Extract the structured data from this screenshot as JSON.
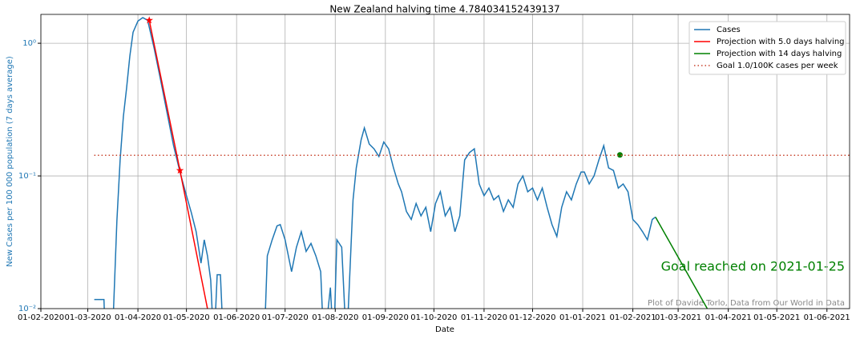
{
  "chart_data": {
    "type": "line",
    "title": "New Zealand halving time 4.784034152439137",
    "xlabel": "Date",
    "ylabel": "New Cases per 100 000 population (7 days average)",
    "annotation": "Goal reached on 2021-01-25",
    "footnote": "Plot of Davide Torlo, Data from Our World in Data",
    "log_y": true,
    "grid": true,
    "legend": "upper right",
    "xlim": [
      "2020-02-01",
      "2021-06-15"
    ],
    "ylim": [
      0.01,
      1.65
    ],
    "xticks": [
      {
        "value": "2020-02-01",
        "label": "01-02-2020"
      },
      {
        "value": "2020-03-01",
        "label": "01-03-2020"
      },
      {
        "value": "2020-04-01",
        "label": "01-04-2020"
      },
      {
        "value": "2020-05-01",
        "label": "01-05-2020"
      },
      {
        "value": "2020-06-01",
        "label": "01-06-2020"
      },
      {
        "value": "2020-07-01",
        "label": "01-07-2020"
      },
      {
        "value": "2020-08-01",
        "label": "01-08-2020"
      },
      {
        "value": "2020-09-01",
        "label": "01-09-2020"
      },
      {
        "value": "2020-10-01",
        "label": "01-10-2020"
      },
      {
        "value": "2020-11-01",
        "label": "01-11-2020"
      },
      {
        "value": "2020-12-01",
        "label": "01-12-2020"
      },
      {
        "value": "2021-01-01",
        "label": "01-01-2021"
      },
      {
        "value": "2021-02-01",
        "label": "01-02-2021"
      },
      {
        "value": "2021-03-01",
        "label": "01-03-2021"
      },
      {
        "value": "2021-04-01",
        "label": "01-04-2021"
      },
      {
        "value": "2021-05-01",
        "label": "01-05-2021"
      },
      {
        "value": "2021-06-01",
        "label": "01-06-2021"
      }
    ],
    "yticks": [
      {
        "value": 0.01,
        "label": "10⁻²"
      },
      {
        "value": 0.1,
        "label": "10⁻¹"
      },
      {
        "value": 1,
        "label": "10⁰"
      }
    ],
    "series": [
      {
        "name": "Cases",
        "color": "#1f77b4",
        "linestyle": "solid",
        "x": [
          "2020-03-05",
          "2020-03-11",
          "2020-03-12",
          "2020-03-16",
          "2020-03-19",
          "2020-03-21",
          "2020-03-23",
          "2020-03-25",
          "2020-03-27",
          "2020-03-29",
          "2020-04-01",
          "2020-04-04",
          "2020-04-07",
          "2020-04-11",
          "2020-04-15",
          "2020-04-19",
          "2020-04-23",
          "2020-04-27",
          "2020-05-01",
          "2020-05-04",
          "2020-05-07",
          "2020-05-10",
          "2020-05-12",
          "2020-05-14",
          "2020-05-16",
          "2020-05-18",
          "2020-05-20",
          "2020-05-22",
          "2020-05-24",
          "2020-06-18",
          "2020-06-20",
          "2020-06-23",
          "2020-06-26",
          "2020-06-28",
          "2020-07-01",
          "2020-07-05",
          "2020-07-08",
          "2020-07-11",
          "2020-07-14",
          "2020-07-17",
          "2020-07-20",
          "2020-07-23",
          "2020-07-25",
          "2020-07-29",
          "2020-07-31",
          "2020-08-02",
          "2020-08-05",
          "2020-08-08",
          "2020-08-12",
          "2020-08-14",
          "2020-08-17",
          "2020-08-19",
          "2020-08-22",
          "2020-08-25",
          "2020-08-28",
          "2020-08-31",
          "2020-09-03",
          "2020-09-06",
          "2020-09-09",
          "2020-09-11",
          "2020-09-14",
          "2020-09-17",
          "2020-09-20",
          "2020-09-23",
          "2020-09-26",
          "2020-09-29",
          "2020-10-02",
          "2020-10-05",
          "2020-10-08",
          "2020-10-11",
          "2020-10-14",
          "2020-10-17",
          "2020-10-20",
          "2020-10-23",
          "2020-10-26",
          "2020-10-29",
          "2020-11-01",
          "2020-11-04",
          "2020-11-07",
          "2020-11-10",
          "2020-11-13",
          "2020-11-16",
          "2020-11-19",
          "2020-11-22",
          "2020-11-25",
          "2020-11-28",
          "2020-12-01",
          "2020-12-04",
          "2020-12-07",
          "2020-12-10",
          "2020-12-13",
          "2020-12-16",
          "2020-12-19",
          "2020-12-22",
          "2020-12-25",
          "2020-12-28",
          "2020-12-31",
          "2021-01-02",
          "2021-01-05",
          "2021-01-08",
          "2021-01-11",
          "2021-01-14",
          "2021-01-17",
          "2021-01-20",
          "2021-01-23",
          "2021-01-26",
          "2021-01-29",
          "2021-02-01",
          "2021-02-04",
          "2021-02-07",
          "2021-02-10",
          "2021-02-13",
          "2021-02-15"
        ],
        "values": [
          0.0117,
          0.0117,
          0.005,
          0.005,
          0.046,
          0.132,
          0.28,
          0.46,
          0.8,
          1.21,
          1.47,
          1.56,
          1.49,
          0.92,
          0.53,
          0.3,
          0.17,
          0.107,
          0.071,
          0.053,
          0.038,
          0.022,
          0.033,
          0.025,
          0.0164,
          0.005,
          0.018,
          0.018,
          0.005,
          0.005,
          0.025,
          0.033,
          0.042,
          0.043,
          0.033,
          0.019,
          0.029,
          0.038,
          0.027,
          0.031,
          0.025,
          0.019,
          0.005,
          0.0144,
          0.005,
          0.033,
          0.029,
          0.005,
          0.066,
          0.115,
          0.187,
          0.23,
          0.174,
          0.16,
          0.14,
          0.18,
          0.16,
          0.115,
          0.087,
          0.076,
          0.054,
          0.047,
          0.062,
          0.05,
          0.058,
          0.038,
          0.062,
          0.076,
          0.05,
          0.058,
          0.038,
          0.05,
          0.132,
          0.15,
          0.16,
          0.087,
          0.071,
          0.081,
          0.066,
          0.071,
          0.054,
          0.066,
          0.058,
          0.087,
          0.1,
          0.076,
          0.081,
          0.066,
          0.081,
          0.058,
          0.043,
          0.035,
          0.058,
          0.076,
          0.066,
          0.087,
          0.107,
          0.107,
          0.087,
          0.1,
          0.132,
          0.169,
          0.115,
          0.11,
          0.081,
          0.087,
          0.076,
          0.047,
          0.043,
          0.038,
          0.033,
          0.047,
          0.049
        ]
      },
      {
        "name": "Projection with 5.0 days halving",
        "color": "#ff0000",
        "linestyle": "solid",
        "x": [
          "2020-04-08",
          "2020-04-27",
          "2020-05-14"
        ],
        "values": [
          1.49,
          0.11,
          0.01
        ],
        "marker": "star",
        "markers": {
          "x": [
            "2020-04-08",
            "2020-04-27"
          ],
          "values": [
            1.49,
            0.11
          ]
        }
      },
      {
        "name": "Projection with 14 days halving",
        "color": "#008000",
        "linestyle": "solid",
        "x": [
          "2021-02-15",
          "2021-03-19"
        ],
        "values": [
          0.049,
          0.01
        ],
        "marker": "circle",
        "markers": {
          "x": [
            "2021-01-24"
          ],
          "values": [
            0.144
          ]
        }
      },
      {
        "name": "Goal 1.0/100K cases per week",
        "color": "#c8442e",
        "linestyle": "dotted",
        "x": [
          "2020-03-05",
          "2021-06-15"
        ],
        "values": [
          0.143,
          0.143
        ]
      }
    ]
  }
}
